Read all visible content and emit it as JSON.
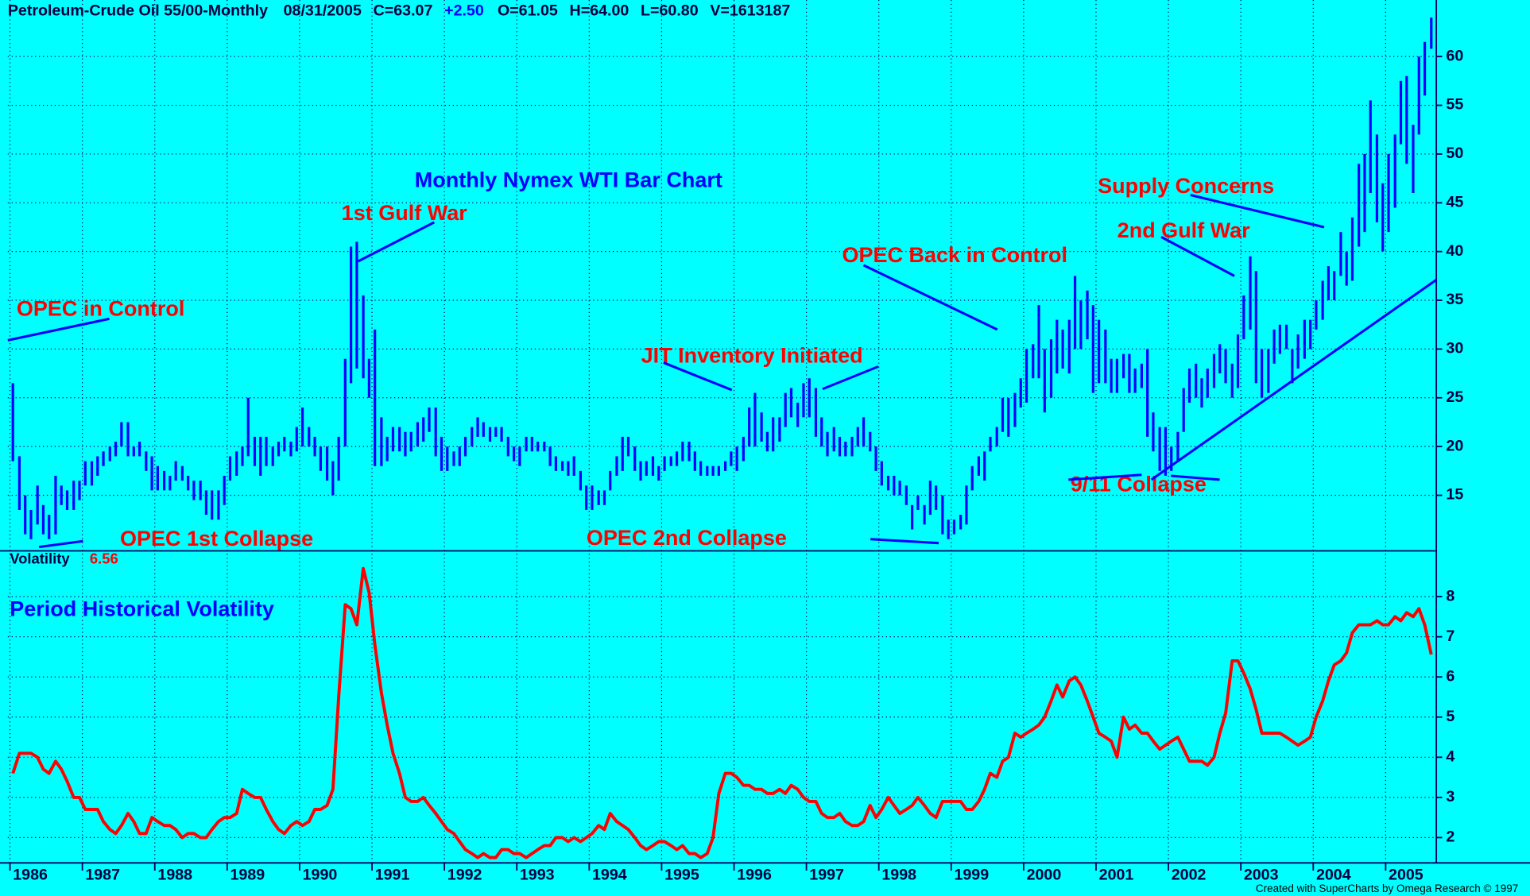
{
  "header": [
    "Petroleum-Crude Oil 55/00-Monthly",
    "08/31/2005",
    "C=63.07",
    "+2.50",
    "O=61.05",
    "H=64.00",
    "L=60.80",
    "V=1613187"
  ],
  "footer": "Created with SuperCharts by Omega Research © 1997",
  "chart_data": [
    {
      "type": "range-bar",
      "title": "Monthly Nymex WTI Bar Chart",
      "color": "#0000ff",
      "grid": true,
      "xlim": [
        1985.97,
        2005.7
      ],
      "xticks": [
        1986,
        1987,
        1988,
        1989,
        1990,
        1991,
        1992,
        1993,
        1994,
        1995,
        1996,
        1997,
        1998,
        1999,
        2000,
        2001,
        2002,
        2003,
        2004,
        2005
      ],
      "ylim": [
        9.3,
        65.8
      ],
      "yticks": [
        15,
        20,
        25,
        30,
        35,
        40,
        45,
        50,
        55,
        60
      ],
      "annotations": [
        "OPEC in Control",
        "OPEC 1st Collapse",
        "1st Gulf War",
        "JIT Inventory Initiated",
        "OPEC 2nd Collapse",
        "OPEC Back in Control",
        "Supply Concerns",
        "2nd Gulf War",
        "9/11 Collapse"
      ],
      "x": [
        1986.04,
        1986.13,
        1986.21,
        1986.29,
        1986.38,
        1986.46,
        1986.54,
        1986.63,
        1986.71,
        1986.79,
        1986.88,
        1986.96,
        1987.04,
        1987.13,
        1987.21,
        1987.29,
        1987.38,
        1987.46,
        1987.54,
        1987.63,
        1987.71,
        1987.79,
        1987.88,
        1987.96,
        1988.04,
        1988.13,
        1988.21,
        1988.29,
        1988.38,
        1988.46,
        1988.54,
        1988.63,
        1988.71,
        1988.79,
        1988.88,
        1988.96,
        1989.04,
        1989.13,
        1989.21,
        1989.29,
        1989.38,
        1989.46,
        1989.54,
        1989.63,
        1989.71,
        1989.79,
        1989.88,
        1989.96,
        1990.04,
        1990.13,
        1990.21,
        1990.29,
        1990.38,
        1990.46,
        1990.54,
        1990.63,
        1990.71,
        1990.79,
        1990.88,
        1990.96,
        1991.04,
        1991.13,
        1991.21,
        1991.29,
        1991.38,
        1991.46,
        1991.54,
        1991.63,
        1991.71,
        1991.79,
        1991.88,
        1991.96,
        1992.04,
        1992.13,
        1992.21,
        1992.29,
        1992.38,
        1992.46,
        1992.54,
        1992.63,
        1992.71,
        1992.79,
        1992.88,
        1992.96,
        1993.04,
        1993.13,
        1993.21,
        1993.29,
        1993.38,
        1993.46,
        1993.54,
        1993.63,
        1993.71,
        1993.79,
        1993.88,
        1993.96,
        1994.04,
        1994.13,
        1994.21,
        1994.29,
        1994.38,
        1994.46,
        1994.54,
        1994.63,
        1994.71,
        1994.79,
        1994.88,
        1994.96,
        1995.04,
        1995.13,
        1995.21,
        1995.29,
        1995.38,
        1995.46,
        1995.54,
        1995.63,
        1995.71,
        1995.79,
        1995.88,
        1995.96,
        1996.04,
        1996.13,
        1996.21,
        1996.29,
        1996.38,
        1996.46,
        1996.54,
        1996.63,
        1996.71,
        1996.79,
        1996.88,
        1996.96,
        1997.04,
        1997.13,
        1997.21,
        1997.29,
        1997.38,
        1997.46,
        1997.54,
        1997.63,
        1997.71,
        1997.79,
        1997.88,
        1997.96,
        1998.04,
        1998.13,
        1998.21,
        1998.29,
        1998.38,
        1998.46,
        1998.54,
        1998.63,
        1998.71,
        1998.79,
        1998.88,
        1998.96,
        1999.04,
        1999.13,
        1999.21,
        1999.29,
        1999.38,
        1999.46,
        1999.54,
        1999.63,
        1999.71,
        1999.79,
        1999.88,
        1999.96,
        2000.04,
        2000.13,
        2000.21,
        2000.29,
        2000.38,
        2000.46,
        2000.54,
        2000.63,
        2000.71,
        2000.79,
        2000.88,
        2000.96,
        2001.04,
        2001.13,
        2001.21,
        2001.29,
        2001.38,
        2001.46,
        2001.54,
        2001.63,
        2001.71,
        2001.79,
        2001.88,
        2001.96,
        2002.04,
        2002.13,
        2002.21,
        2002.29,
        2002.38,
        2002.46,
        2002.54,
        2002.63,
        2002.71,
        2002.79,
        2002.88,
        2002.96,
        2003.04,
        2003.13,
        2003.21,
        2003.29,
        2003.38,
        2003.46,
        2003.54,
        2003.63,
        2003.71,
        2003.79,
        2003.88,
        2003.96,
        2004.04,
        2004.13,
        2004.21,
        2004.29,
        2004.38,
        2004.46,
        2004.54,
        2004.63,
        2004.71,
        2004.79,
        2004.88,
        2004.96,
        2005.04,
        2005.13,
        2005.21,
        2005.29,
        2005.38,
        2005.46,
        2005.54,
        2005.63
      ],
      "high": [
        26.5,
        19,
        15,
        13.5,
        16,
        14,
        13,
        17,
        16,
        15.5,
        16.5,
        16.5,
        18.5,
        18.5,
        19,
        19.5,
        20,
        20.5,
        22.5,
        22.5,
        20,
        20.5,
        19.5,
        19,
        18,
        17.5,
        17,
        18.5,
        18,
        17,
        16.5,
        16.5,
        15.5,
        15.5,
        15.5,
        17,
        19,
        19.5,
        20,
        25,
        21,
        21,
        21,
        20,
        20.5,
        21,
        20.5,
        22,
        24,
        22,
        21,
        20,
        20,
        18.5,
        21,
        29,
        40.5,
        41,
        35.5,
        29,
        32,
        23,
        21,
        22,
        22,
        21.5,
        21.5,
        22.5,
        23,
        24,
        24,
        21,
        20,
        19.5,
        20,
        21,
        22,
        23,
        22.5,
        22,
        22,
        22,
        21,
        20,
        20,
        21,
        21,
        20.5,
        20.5,
        20,
        19,
        18.5,
        18.5,
        19,
        17.5,
        16,
        16,
        15.5,
        15.5,
        17.5,
        19,
        21,
        21,
        20,
        18.5,
        18.5,
        19,
        18,
        19,
        19,
        19.5,
        20.5,
        20.5,
        19.5,
        18.5,
        18,
        18,
        18,
        18.5,
        19.5,
        20,
        21,
        24,
        25.5,
        23.5,
        21.5,
        23,
        23,
        25.5,
        26,
        24.5,
        26.5,
        27,
        26,
        23,
        21.5,
        22,
        21,
        20.5,
        21,
        22,
        23,
        21.5,
        20,
        18.5,
        17,
        17,
        16.5,
        16,
        14,
        15,
        14,
        16.5,
        16,
        15,
        12.5,
        12.5,
        13,
        16,
        18,
        19,
        19.5,
        21,
        22,
        25,
        25,
        25.5,
        27,
        30,
        30.5,
        34.5,
        30,
        31,
        33,
        32,
        33,
        37.5,
        35,
        36,
        34.5,
        33,
        32,
        29,
        29,
        29.5,
        29.5,
        28,
        28.5,
        30,
        23.5,
        22,
        22,
        20,
        21.5,
        26,
        28,
        28.5,
        27,
        28,
        29.5,
        30.5,
        30,
        28.5,
        31.5,
        35.5,
        39.5,
        38,
        30,
        30,
        32,
        32.5,
        32.5,
        30,
        31.5,
        33,
        33,
        35,
        37,
        38.5,
        38,
        42,
        40,
        43.5,
        49,
        50,
        55.5,
        52,
        47,
        50,
        52,
        57.5,
        58,
        53,
        60,
        61.5,
        64
      ],
      "low": [
        18.5,
        13.5,
        11,
        10.5,
        12,
        11,
        10.5,
        11,
        14,
        13.5,
        13.5,
        14.5,
        16,
        16,
        17,
        18,
        18.5,
        19,
        20,
        19,
        19,
        19,
        17.5,
        15.5,
        15.5,
        15.5,
        15.5,
        16.5,
        16.5,
        15.5,
        14.5,
        14.5,
        13,
        12.5,
        12.5,
        14,
        16.5,
        17,
        18,
        19,
        18,
        17,
        18,
        18,
        19,
        19.5,
        19,
        19.5,
        20,
        20,
        19,
        17.5,
        16.5,
        15,
        16.5,
        20,
        26.5,
        28,
        27,
        25,
        18,
        18,
        18.5,
        19.5,
        19.5,
        19,
        19.5,
        20,
        20.5,
        21.5,
        19,
        17.5,
        17.5,
        18,
        18,
        19,
        20,
        21,
        21,
        20.5,
        21,
        20.5,
        19,
        18.5,
        18,
        19.5,
        19.5,
        19.5,
        19.5,
        18,
        17.5,
        17.5,
        17,
        17,
        15.5,
        13.5,
        13.5,
        14,
        14,
        15.5,
        17,
        17.5,
        19,
        17.5,
        16.5,
        17,
        17,
        16.5,
        17.5,
        18,
        18,
        18.5,
        18.5,
        17.5,
        17,
        17,
        17,
        17,
        17.5,
        18,
        17.5,
        18.5,
        20,
        20,
        20.5,
        19.5,
        19.5,
        20.5,
        22,
        23,
        22,
        23,
        23,
        21,
        20,
        19,
        19.5,
        19,
        19,
        19,
        20,
        20,
        19.5,
        17.5,
        16,
        15.5,
        15,
        15,
        14,
        11.5,
        13.5,
        12,
        13,
        13.5,
        11,
        10.5,
        11,
        11.5,
        12,
        15.5,
        17,
        16.5,
        19.5,
        20,
        21.5,
        21,
        22,
        24,
        24.5,
        27,
        27,
        23.5,
        25,
        27.5,
        28,
        27.5,
        30,
        30,
        31,
        25.5,
        26.5,
        26.5,
        25.5,
        25.5,
        27,
        25.5,
        25.5,
        26,
        21,
        19.5,
        17.5,
        17,
        17.5,
        18.5,
        21.5,
        24.5,
        25,
        24,
        25,
        26,
        27.5,
        26.5,
        25,
        26,
        31,
        32,
        26.5,
        25,
        25.5,
        28.5,
        29.5,
        30,
        26.5,
        28,
        29,
        30,
        32,
        33,
        35,
        35,
        37.5,
        36.5,
        37,
        40.5,
        42,
        46,
        43,
        40,
        42,
        44.5,
        51,
        49,
        46,
        52,
        56,
        60.8
      ]
    },
    {
      "type": "line",
      "title": "Period Historical Volatility",
      "grid": true,
      "ylim": [
        1.37,
        9.14
      ],
      "yticks": [
        2,
        3,
        4,
        5,
        6,
        7,
        8
      ],
      "series": [
        {
          "name": "Volatility",
          "color": "#ff0000",
          "values": [
            3.6,
            4.1,
            4.1,
            4.1,
            4.0,
            3.7,
            3.6,
            3.9,
            3.7,
            3.4,
            3.0,
            3.0,
            2.7,
            2.7,
            2.7,
            2.4,
            2.2,
            2.1,
            2.3,
            2.6,
            2.4,
            2.1,
            2.1,
            2.5,
            2.4,
            2.3,
            2.3,
            2.2,
            2.0,
            2.1,
            2.1,
            2.0,
            2.0,
            2.2,
            2.4,
            2.5,
            2.5,
            2.6,
            3.2,
            3.1,
            3.0,
            3.0,
            2.7,
            2.4,
            2.2,
            2.1,
            2.3,
            2.4,
            2.3,
            2.4,
            2.7,
            2.7,
            2.8,
            3.2,
            5.5,
            7.8,
            7.7,
            7.3,
            8.7,
            8.1,
            6.8,
            5.6,
            4.8,
            4.1,
            3.6,
            3.0,
            2.9,
            2.9,
            3.0,
            2.8,
            2.6,
            2.4,
            2.2,
            2.1,
            1.9,
            1.7,
            1.6,
            1.5,
            1.6,
            1.5,
            1.5,
            1.7,
            1.7,
            1.6,
            1.6,
            1.5,
            1.6,
            1.7,
            1.8,
            1.8,
            2.0,
            2.0,
            1.9,
            2.0,
            1.9,
            2.0,
            2.1,
            2.3,
            2.2,
            2.6,
            2.4,
            2.3,
            2.2,
            2.0,
            1.8,
            1.7,
            1.8,
            1.9,
            1.9,
            1.8,
            1.7,
            1.8,
            1.6,
            1.6,
            1.5,
            1.6,
            2.0,
            3.1,
            3.6,
            3.6,
            3.5,
            3.3,
            3.3,
            3.2,
            3.2,
            3.1,
            3.1,
            3.2,
            3.1,
            3.3,
            3.2,
            3.0,
            2.9,
            2.9,
            2.6,
            2.5,
            2.5,
            2.6,
            2.4,
            2.3,
            2.3,
            2.4,
            2.8,
            2.5,
            2.7,
            3.0,
            2.8,
            2.6,
            2.7,
            2.8,
            3.0,
            2.8,
            2.6,
            2.5,
            2.9,
            2.9,
            2.9,
            2.9,
            2.7,
            2.7,
            2.9,
            3.2,
            3.6,
            3.5,
            3.9,
            4.0,
            4.6,
            4.5,
            4.6,
            4.7,
            4.8,
            5.0,
            5.4,
            5.8,
            5.5,
            5.9,
            6.0,
            5.8,
            5.4,
            5.0,
            4.6,
            4.5,
            4.4,
            4.0,
            5.0,
            4.7,
            4.8,
            4.6,
            4.6,
            4.4,
            4.2,
            4.3,
            4.4,
            4.5,
            4.2,
            3.9,
            3.9,
            3.9,
            3.8,
            4.0,
            4.6,
            5.1,
            6.4,
            6.4,
            6.1,
            5.7,
            5.2,
            4.6,
            4.6,
            4.6,
            4.6,
            4.5,
            4.4,
            4.3,
            4.4,
            4.5,
            5.0,
            5.4,
            5.9,
            6.3,
            6.4,
            6.6,
            7.1,
            7.3,
            7.3,
            7.3,
            7.4,
            7.3,
            7.3,
            7.5,
            7.4,
            7.6,
            7.5,
            7.7,
            7.3,
            6.56
          ]
        }
      ]
    }
  ]
}
